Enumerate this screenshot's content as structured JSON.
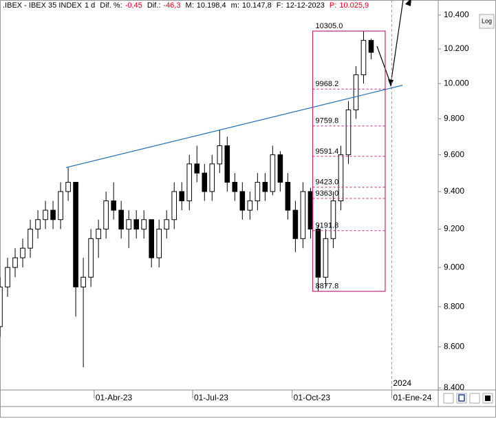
{
  "header": {
    "symbol": ".IBEX - IBEX 35 INDEX",
    "interval": "1 d",
    "change_pct_label": "Dif. %:",
    "change_pct": "-0,45",
    "change_label": "Dif.:",
    "change": "-46,3",
    "high_label": "M:",
    "high": "10.198,4",
    "low_label": "m:",
    "low": "10.147,8",
    "date_label": "F:",
    "date": "12-12-2023",
    "price_label": "P:",
    "price": "10.025,9"
  },
  "buttons": {
    "log": "Log"
  },
  "chart_data": {
    "type": "candlestick",
    "log_scale": true,
    "x": [
      "2023-01-02",
      "2023-01-09",
      "2023-01-16",
      "2023-01-23",
      "2023-01-30",
      "2023-02-06",
      "2023-02-13",
      "2023-02-20",
      "2023-02-27",
      "2023-03-06",
      "2023-03-13",
      "2023-03-20",
      "2023-03-27",
      "2023-04-03",
      "2023-04-10",
      "2023-04-17",
      "2023-04-24",
      "2023-05-01",
      "2023-05-08",
      "2023-05-15",
      "2023-05-22",
      "2023-05-29",
      "2023-06-05",
      "2023-06-12",
      "2023-06-19",
      "2023-06-26",
      "2023-07-03",
      "2023-07-10",
      "2023-07-17",
      "2023-07-24",
      "2023-07-31",
      "2023-08-07",
      "2023-08-14",
      "2023-08-21",
      "2023-08-28",
      "2023-09-04",
      "2023-09-11",
      "2023-09-18",
      "2023-09-25",
      "2023-10-02",
      "2023-10-09",
      "2023-10-16",
      "2023-10-23",
      "2023-10-30",
      "2023-11-06",
      "2023-11-13",
      "2023-11-20",
      "2023-11-27",
      "2023-12-04",
      "2023-12-11"
    ],
    "open": [
      8700,
      8900,
      9000,
      9050,
      9100,
      9200,
      9250,
      9300,
      9250,
      9400,
      9450,
      8900,
      8950,
      9150,
      9200,
      9350,
      9300,
      9200,
      9250,
      9200,
      9250,
      9050,
      9200,
      9250,
      9400,
      9350,
      9550,
      9500,
      9400,
      9550,
      9650,
      9450,
      9400,
      9300,
      9350,
      9450,
      9400,
      9600,
      9450,
      9300,
      9150,
      9400,
      9200,
      8950,
      9150,
      9350,
      9600,
      9850,
      10050,
      10250
    ],
    "high": [
      8950,
      9050,
      9100,
      9150,
      9250,
      9300,
      9350,
      9350,
      9450,
      9530,
      9450,
      9050,
      9200,
      9250,
      9400,
      9450,
      9350,
      9300,
      9300,
      9300,
      9250,
      9250,
      9300,
      9450,
      9450,
      9600,
      9650,
      9550,
      9600,
      9740,
      9700,
      9500,
      9450,
      9400,
      9500,
      9500,
      9650,
      9620,
      9500,
      9350,
      9450,
      9420,
      9220,
      9200,
      9400,
      9650,
      9900,
      10100,
      10305,
      10260
    ],
    "low": [
      8650,
      8850,
      8950,
      9000,
      9050,
      9150,
      9200,
      9200,
      9200,
      9350,
      8750,
      8500,
      8900,
      9050,
      9150,
      9250,
      9150,
      9100,
      9150,
      9150,
      9000,
      9000,
      9150,
      9200,
      9300,
      9300,
      9450,
      9350,
      9350,
      9500,
      9400,
      9350,
      9250,
      9250,
      9300,
      9350,
      9380,
      9400,
      9250,
      9080,
      9100,
      9150,
      8880,
      8900,
      9100,
      9300,
      9550,
      9800,
      10000,
      10140
    ],
    "close": [
      8900,
      9000,
      9050,
      9100,
      9200,
      9250,
      9300,
      9250,
      9400,
      9450,
      8900,
      8950,
      9150,
      9200,
      9350,
      9300,
      9200,
      9250,
      9200,
      9250,
      9050,
      9200,
      9250,
      9400,
      9350,
      9550,
      9500,
      9400,
      9550,
      9650,
      9450,
      9400,
      9300,
      9350,
      9450,
      9400,
      9600,
      9450,
      9300,
      9150,
      9400,
      9200,
      8950,
      9150,
      9350,
      9600,
      9850,
      10050,
      10250,
      10180
    ],
    "xlim": [
      "2023-01-04",
      "2024-02-13"
    ],
    "xticks": [
      {
        "value": "2023-04-01",
        "label": "01-Abr-23"
      },
      {
        "value": "2023-07-01",
        "label": "01-Jul-23"
      },
      {
        "value": "2023-10-01",
        "label": "01-Oct-23"
      },
      {
        "value": "2024-01-01",
        "label": "01-Ene-24"
      }
    ],
    "year_marker": {
      "value": "2024-01-01",
      "label": "2024"
    },
    "ylim": [
      8390,
      10490
    ],
    "yticks": [
      {
        "value": 8400,
        "label": "8.400"
      },
      {
        "value": 8600,
        "label": "8.600"
      },
      {
        "value": 8800,
        "label": "8.800"
      },
      {
        "value": 9000,
        "label": "9.000"
      },
      {
        "value": 9200,
        "label": "9.200"
      },
      {
        "value": 9400,
        "label": "9.400"
      },
      {
        "value": 9600,
        "label": "9.600"
      },
      {
        "value": 9800,
        "label": "9.800"
      },
      {
        "value": 10000,
        "label": "10.000"
      },
      {
        "value": 10200,
        "label": "10.200"
      },
      {
        "value": 10400,
        "label": "10.400"
      }
    ],
    "trendline": {
      "x": [
        "2023-03-06",
        "2024-01-11"
      ],
      "values": [
        9530,
        9990
      ],
      "color": "#1f6fb5"
    },
    "fib": {
      "x": [
        "2023-10-20",
        "2023-12-26"
      ],
      "color": "#c0267a",
      "levels": [
        {
          "value": 10305.0,
          "label": "10305.0"
        },
        {
          "value": 9968.2,
          "label": "9968.2"
        },
        {
          "value": 9759.8,
          "label": "9759.8"
        },
        {
          "value": 9591.4,
          "label": "9591.4"
        },
        {
          "value": 9423.0,
          "label": "9423.0"
        },
        {
          "value": 9363.0,
          "label": "9363.0"
        },
        {
          "value": 9191.8,
          "label": "9191.8"
        },
        {
          "value": 8877.8,
          "label": "8877.8"
        }
      ]
    }
  }
}
